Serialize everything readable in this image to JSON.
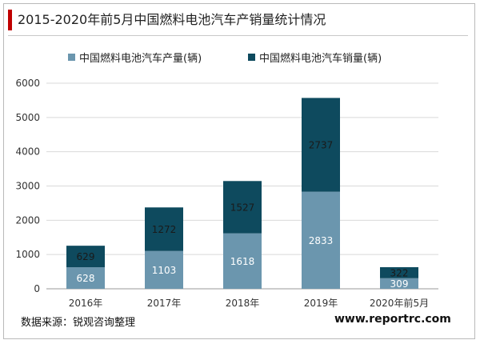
{
  "header": {
    "title": "2015-2020年前5月中国燃料电池汽车产销量统计情况"
  },
  "footer": {
    "source": "数据来源：锐观咨询整理",
    "website": "www.reportrc.com"
  },
  "colors": {
    "accent": "#c00000",
    "production": "#6b96ae",
    "sales": "#0e4a5e"
  },
  "chart_data": {
    "type": "bar",
    "stacked": true,
    "categories": [
      "2016年",
      "2017年",
      "2018年",
      "2019年",
      "2020年前5月"
    ],
    "series": [
      {
        "name": "中国燃料电池汽车产量(辆)",
        "values": [
          628,
          1103,
          1618,
          2833,
          309
        ],
        "color": "#6b96ae"
      },
      {
        "name": "中国燃料电池汽车销量(辆)",
        "values": [
          629,
          1272,
          1527,
          2737,
          322
        ],
        "color": "#0e4a5e"
      }
    ],
    "ylim": [
      0,
      6000
    ],
    "yticks": [
      0,
      1000,
      2000,
      3000,
      4000,
      5000,
      6000
    ],
    "grid": true,
    "legend_position": "top"
  }
}
